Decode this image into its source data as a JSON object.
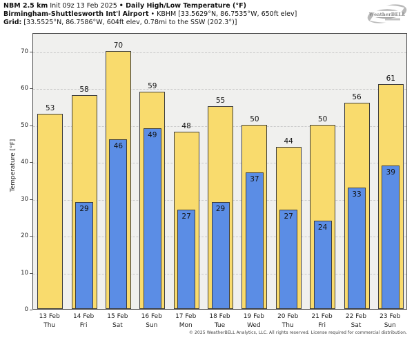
{
  "header": {
    "model_bold": "NBM 2.5 km",
    "init_regular": "Init 09z 13 Feb 2025",
    "product_bold": "• Daily High/Low Temperature (°F)",
    "station_bold": "Birmingham-Shuttlesworth Int'l Airport",
    "station_regular": "• KBHM [33.5629°N, 86.7535°W, 650ft elev]",
    "grid_bold": "Grid:",
    "grid_regular": "[33.5525°N, 86.7586°W, 604ft elev, 0.78mi to the SSW (202.3°)]"
  },
  "logo": {
    "text": "WeatherBELL"
  },
  "footer": "© 2025 WeatherBELL Analytics, LLC. All rights reserved. License required for commercial distribution.",
  "chart_data": {
    "type": "bar",
    "title": "NBM 2.5 km Init 09z 13 Feb 2025 • Daily High/Low Temperature (°F)",
    "subtitle": "Birmingham-Shuttlesworth Int'l Airport • KBHM [33.5629°N, 86.7535°W, 650ft elev]",
    "grid_note": "Grid: [33.5525°N, 86.7586°W, 604ft elev, 0.78mi to the SSW (202.3°)]",
    "ylabel": "Temperature [°F]",
    "ylim": [
      0,
      75
    ],
    "yticks": [
      0,
      10,
      20,
      30,
      40,
      50,
      60,
      70
    ],
    "grid": "horizontal dashed",
    "legend_position": "none",
    "categories": [
      "13 Feb",
      "14 Feb",
      "15 Feb",
      "16 Feb",
      "17 Feb",
      "18 Feb",
      "19 Feb",
      "20 Feb",
      "21 Feb",
      "22 Feb",
      "23 Feb"
    ],
    "weekdays": [
      "Thu",
      "Fri",
      "Sat",
      "Sun",
      "Mon",
      "Tue",
      "Wed",
      "Thu",
      "Fri",
      "Sat",
      "Sun"
    ],
    "series": [
      {
        "name": "Daily High",
        "color": "#f9db6d",
        "values": [
          53,
          58,
          70,
          59,
          48,
          55,
          50,
          44,
          50,
          56,
          61
        ]
      },
      {
        "name": "Daily Low",
        "color": "#5b8de5",
        "values": [
          null,
          29,
          46,
          49,
          27,
          29,
          37,
          27,
          24,
          33,
          39
        ]
      }
    ]
  },
  "colors": {
    "high_bar": "#f9db6d",
    "low_bar": "#5b8de5",
    "bar_border": "#3d3d3d",
    "plot_background": "#f0f0ee",
    "gridline": "#c9c9c9",
    "axis": "#4d4d4d",
    "logo_gray": "#a3a3a3"
  }
}
